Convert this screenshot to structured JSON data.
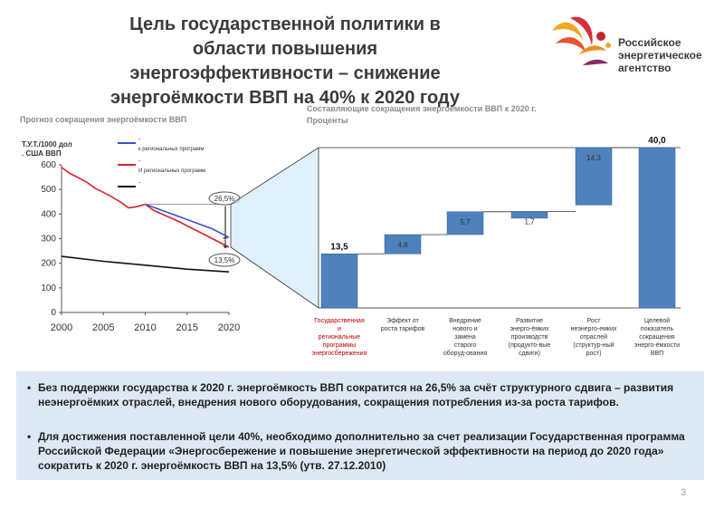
{
  "slide": {
    "title": "Цель государственной политики в\nобласти повышения\nэнергоэффективности – снижение\nэнергоёмкости ВВП на 40% к 2020 году",
    "logo_text": "Российское\nэнергетическое\nагентство",
    "page_number": "3",
    "bullets": [
      "Без поддержки государства к 2020 г. энергоёмкость ВВП сократится на 26,5% за счёт структурного сдвига – развития неэнергоёмких отраслей, внедрения нового оборудования, сокращения потребления из-за роста тарифов.",
      "Для достижения поставленной цели 40%, необходимо дополнительно за счет реализации Государственная программа Российской Федерации «Энергосбережение и повышение энергетической эффективности на период до 2020 года» сократить к 2020 г. энергоёмкость ВВП на 13,5% (утв. 27.12.2010)"
    ],
    "bullet_marker": "•"
  },
  "chart_data": [
    {
      "type": "line",
      "title": "Прогноз сокращения энергоёмкости ВВП",
      "ylabel": "Т.У.Т./1000 долл. США ВВП",
      "xlim": [
        2000,
        2020
      ],
      "ylim": [
        0,
        600
      ],
      "x_ticks": [
        2000,
        2005,
        2010,
        2015,
        2020
      ],
      "y_ticks": [
        0,
        100,
        200,
        300,
        400,
        500,
        600
      ],
      "grid": false,
      "legend": [
        {
          "marker": "-",
          "label": "к региональных программ",
          "color": "#3a4fd8"
        },
        {
          "marker": "-",
          "label": "И региональных программ",
          "color": "#d9232a"
        },
        {
          "marker": "-",
          "label": "",
          "color": "#111111"
        }
      ],
      "series": [
        {
          "color": "#d9232a",
          "points": [
            [
              2000,
              590
            ],
            [
              2001,
              565
            ],
            [
              2002,
              548
            ],
            [
              2003,
              530
            ],
            [
              2004,
              505
            ],
            [
              2005,
              488
            ],
            [
              2006,
              470
            ],
            [
              2007,
              450
            ],
            [
              2008,
              425
            ],
            [
              2009,
              430
            ],
            [
              2010,
              440
            ],
            [
              2011,
              415
            ],
            [
              2012,
              400
            ],
            [
              2013,
              385
            ],
            [
              2014,
              370
            ],
            [
              2015,
              352
            ],
            [
              2016,
              335
            ],
            [
              2017,
              318
            ],
            [
              2018,
              300
            ],
            [
              2019,
              283
            ],
            [
              2020,
              265
            ]
          ]
        },
        {
          "color": "#3a4fd8",
          "points": [
            [
              2010,
              440
            ],
            [
              2012,
              415
            ],
            [
              2014,
              390
            ],
            [
              2016,
              365
            ],
            [
              2018,
              340
            ],
            [
              2020,
              305
            ]
          ]
        },
        {
          "color": "#111111",
          "points": [
            [
              2000,
              228
            ],
            [
              2005,
              208
            ],
            [
              2010,
              192
            ],
            [
              2015,
              176
            ],
            [
              2020,
              165
            ]
          ]
        }
      ],
      "annotations": [
        "26,5%",
        "13,5%"
      ]
    },
    {
      "type": "bar",
      "title": "Составляющие сокращения энергоёмкости ВВП к 2020 г.",
      "ylabel": "Проценты",
      "categories": [
        "Государственная и региональные программы энергосбережения",
        "Эффект от роста тарифов",
        "Внедрение нового и замена старого оборуд-ования",
        "Развитие энерго-ёмких производств (продукто-вые сдвиги)",
        "Рост неэнерго-емких отраслей (структур-ный рост)",
        "Целевой показатель сокращения энерго-ёмкости ВВП"
      ],
      "bars": [
        {
          "label": "13,5",
          "base": 0,
          "value": 13.5
        },
        {
          "label": "4,8",
          "base": 13.5,
          "value": 4.8
        },
        {
          "label": "5,7",
          "base": 18.3,
          "value": 5.7
        },
        {
          "label": "1,7",
          "base": 22.4,
          "value": 1.7
        },
        {
          "label": "14,3",
          "base": 25.7,
          "value": 14.3
        },
        {
          "label": "40,0",
          "base": 0,
          "value": 40.0
        }
      ],
      "ylim": [
        0,
        40
      ],
      "grid": false,
      "colors": {
        "bar": "#4f81bd",
        "first_label": "#c00000",
        "text": "#333333"
      }
    }
  ]
}
